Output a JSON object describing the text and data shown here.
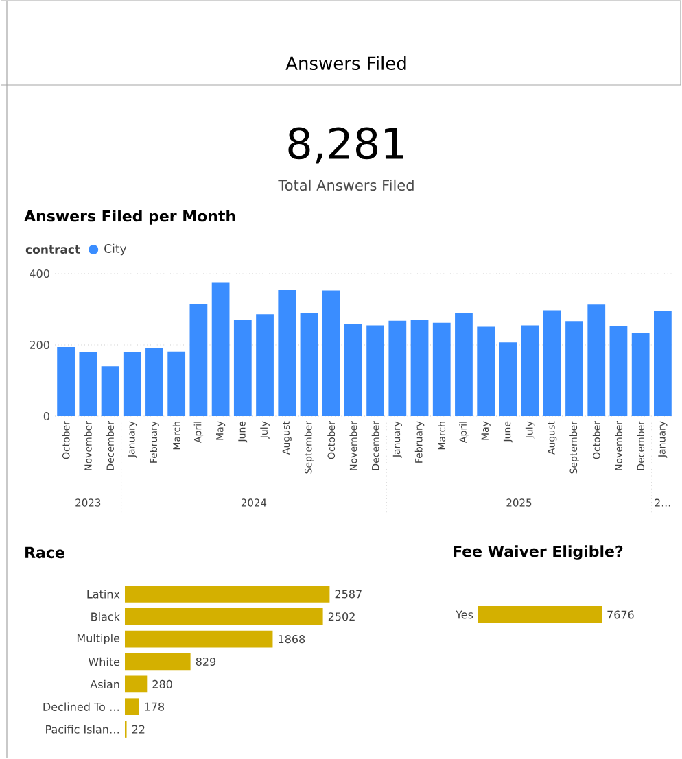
{
  "chart_data": [
    {
      "type": "other",
      "subtitle": "Answers Filed",
      "annotations": [
        "8,281",
        "Total Answers Filed"
      ]
    },
    {
      "type": "bar",
      "title": "Answers Filed per Month",
      "legend_title": "contract",
      "legend": "top left",
      "grid": "y",
      "categories": [
        "October",
        "November",
        "December",
        "January",
        "February",
        "March",
        "April",
        "May",
        "June",
        "July",
        "August",
        "September",
        "October",
        "November",
        "December",
        "January",
        "February",
        "March",
        "April",
        "May",
        "June",
        "July",
        "August",
        "September",
        "October",
        "November",
        "December",
        "January"
      ],
      "series": [
        {
          "name": "City",
          "color": "#3a8dff",
          "values": [
            194,
            179,
            140,
            179,
            192,
            181,
            314,
            374,
            271,
            286,
            354,
            290,
            353,
            258,
            255,
            268,
            270,
            262,
            290,
            251,
            207,
            255,
            297,
            267,
            313,
            254,
            233,
            294
          ]
        }
      ],
      "ylim": [
        0,
        400
      ],
      "yticks": [
        0,
        200,
        400
      ],
      "annotations": [
        "2023",
        "2024",
        "2025",
        "2…"
      ]
    },
    {
      "type": "bar",
      "orientation": "horizontal",
      "title": "Race",
      "data_labels": true,
      "categories": [
        "Latinx",
        "Black",
        "Multiple",
        "White",
        "Asian",
        "Declined To …",
        "Pacific Islan…"
      ],
      "values": [
        2587,
        2502,
        1868,
        829,
        280,
        178,
        22
      ],
      "color": "#d4b000"
    },
    {
      "type": "bar",
      "orientation": "horizontal",
      "title": "Fee Waiver Eligible?",
      "data_labels": true,
      "categories": [
        "Yes"
      ],
      "values": [
        7676
      ],
      "color": "#d4b000"
    }
  ]
}
